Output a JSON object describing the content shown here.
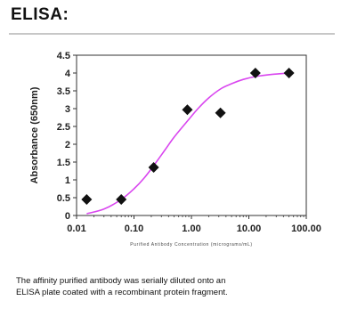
{
  "heading": "ELISA:",
  "caption": {
    "line1": "The affinity purified antibody was serially diluted onto an",
    "line2": "ELISA plate coated with a recombinant protein fragment."
  },
  "chart_data": {
    "type": "scatter",
    "title": "",
    "xlabel": "Purified Antibody Concentration (micrograms/mL)",
    "ylabel": "Absorbance (650nm)",
    "xscale": "log",
    "xlim": [
      0.01,
      100
    ],
    "ylim": [
      0,
      4.5
    ],
    "xticks": [
      "0.01",
      "0.10",
      "1.00",
      "10.00",
      "100.00"
    ],
    "yticks": [
      "0",
      "0.5",
      "1",
      "1.5",
      "2",
      "2.5",
      "3",
      "3.5",
      "4",
      "4.5"
    ],
    "grid": false,
    "marker": "diamond",
    "points": [
      {
        "x": 0.015,
        "y": 0.45
      },
      {
        "x": 0.06,
        "y": 0.45
      },
      {
        "x": 0.22,
        "y": 1.35
      },
      {
        "x": 0.85,
        "y": 2.97
      },
      {
        "x": 3.2,
        "y": 2.88
      },
      {
        "x": 13,
        "y": 4.0
      },
      {
        "x": 50,
        "y": 4.0
      }
    ],
    "fit": {
      "name": "",
      "color": "#d946ef",
      "x": [
        0.015,
        0.03,
        0.06,
        0.1,
        0.15,
        0.22,
        0.35,
        0.5,
        0.85,
        1.3,
        2,
        3.2,
        5,
        8,
        13,
        25,
        50
      ],
      "y": [
        0.05,
        0.18,
        0.45,
        0.75,
        1.05,
        1.4,
        1.85,
        2.2,
        2.65,
        3.0,
        3.3,
        3.55,
        3.7,
        3.82,
        3.9,
        3.96,
        4.0
      ]
    }
  }
}
